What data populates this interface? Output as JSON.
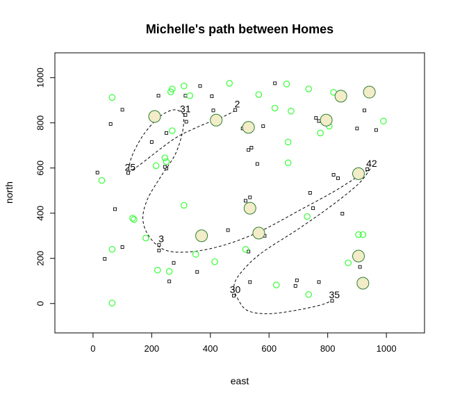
{
  "chart_data": {
    "type": "scatter",
    "title": "Michelle's path between Homes",
    "xlabel": "east",
    "ylabel": "north",
    "xlim": [
      -130,
      1130
    ],
    "ylim": [
      -130,
      1110
    ],
    "xticks": [
      0,
      200,
      400,
      600,
      800,
      1000
    ],
    "yticks": [
      0,
      200,
      400,
      600,
      800,
      1000
    ],
    "grid": false,
    "colors": {
      "green_circle": "#33ff33",
      "home_fill": "#f2ecc8",
      "home_stroke": "#2e7d32",
      "square": "#000000",
      "path": "#000000"
    },
    "squares": [
      [
        365,
        963
      ],
      [
        315,
        920
      ],
      [
        405,
        918
      ],
      [
        223,
        920
      ],
      [
        620,
        975
      ],
      [
        485,
        857
      ],
      [
        410,
        855
      ],
      [
        315,
        835
      ],
      [
        760,
        822
      ],
      [
        770,
        808
      ],
      [
        925,
        855
      ],
      [
        965,
        768
      ],
      [
        900,
        775
      ],
      [
        580,
        785
      ],
      [
        510,
        775
      ],
      [
        60,
        795
      ],
      [
        100,
        858
      ],
      [
        200,
        715
      ],
      [
        250,
        755
      ],
      [
        530,
        680
      ],
      [
        540,
        690
      ],
      [
        560,
        618
      ],
      [
        250,
        598
      ],
      [
        245,
        605
      ],
      [
        15,
        580
      ],
      [
        120,
        578
      ],
      [
        820,
        570
      ],
      [
        835,
        555
      ],
      [
        935,
        595
      ],
      [
        740,
        490
      ],
      [
        750,
        422
      ],
      [
        850,
        398
      ],
      [
        535,
        470
      ],
      [
        520,
        455
      ],
      [
        75,
        418
      ],
      [
        460,
        325
      ],
      [
        585,
        300
      ],
      [
        225,
        260
      ],
      [
        225,
        235
      ],
      [
        530,
        230
      ],
      [
        100,
        250
      ],
      [
        40,
        198
      ],
      [
        275,
        180
      ],
      [
        355,
        140
      ],
      [
        260,
        98
      ],
      [
        910,
        162
      ],
      [
        695,
        103
      ],
      [
        690,
        78
      ],
      [
        770,
        95
      ],
      [
        535,
        95
      ],
      [
        480,
        35
      ],
      [
        815,
        12
      ],
      [
        318,
        805
      ]
    ],
    "circles": [
      [
        65,
        912
      ],
      [
        310,
        963
      ],
      [
        270,
        950
      ],
      [
        265,
        937
      ],
      [
        465,
        975
      ],
      [
        660,
        972
      ],
      [
        735,
        950
      ],
      [
        820,
        935
      ],
      [
        565,
        925
      ],
      [
        330,
        920
      ],
      [
        620,
        865
      ],
      [
        675,
        852
      ],
      [
        805,
        785
      ],
      [
        990,
        808
      ],
      [
        775,
        755
      ],
      [
        270,
        765
      ],
      [
        665,
        715
      ],
      [
        245,
        645
      ],
      [
        215,
        610
      ],
      [
        250,
        628
      ],
      [
        665,
        623
      ],
      [
        30,
        545
      ],
      [
        310,
        435
      ],
      [
        135,
        378
      ],
      [
        140,
        372
      ],
      [
        730,
        385
      ],
      [
        905,
        305
      ],
      [
        920,
        305
      ],
      [
        180,
        290
      ],
      [
        520,
        240
      ],
      [
        65,
        240
      ],
      [
        350,
        218
      ],
      [
        415,
        185
      ],
      [
        220,
        148
      ],
      [
        260,
        142
      ],
      [
        870,
        180
      ],
      [
        625,
        82
      ],
      [
        735,
        40
      ],
      [
        65,
        2
      ]
    ],
    "homes": [
      [
        210,
        828
      ],
      [
        420,
        812
      ],
      [
        530,
        780
      ],
      [
        795,
        812
      ],
      [
        845,
        918
      ],
      [
        942,
        936
      ],
      [
        370,
        300
      ],
      [
        535,
        422
      ],
      [
        565,
        312
      ],
      [
        905,
        575
      ],
      [
        905,
        210
      ],
      [
        920,
        90
      ]
    ],
    "labels": [
      {
        "text": "31",
        "x": 310,
        "y": 837
      },
      {
        "text": "2",
        "x": 487,
        "y": 860
      },
      {
        "text": "25",
        "x": 122,
        "y": 580
      },
      {
        "text": "42",
        "x": 945,
        "y": 596
      },
      {
        "text": "3",
        "x": 228,
        "y": 262
      },
      {
        "text": "30",
        "x": 480,
        "y": 38
      },
      {
        "text": "35",
        "x": 818,
        "y": 15
      }
    ],
    "paths": [
      [
        [
          120,
          580
        ],
        [
          155,
          610
        ],
        [
          200,
          655
        ],
        [
          245,
          700
        ],
        [
          290,
          740
        ],
        [
          340,
          772
        ],
        [
          390,
          800
        ],
        [
          440,
          825
        ],
        [
          487,
          855
        ]
      ],
      [
        [
          310,
          838
        ],
        [
          280,
          858
        ],
        [
          235,
          835
        ],
        [
          185,
          770
        ],
        [
          150,
          700
        ],
        [
          128,
          635
        ],
        [
          120,
          580
        ]
      ],
      [
        [
          310,
          838
        ],
        [
          305,
          760
        ],
        [
          280,
          660
        ],
        [
          230,
          560
        ],
        [
          185,
          460
        ],
        [
          170,
          370
        ],
        [
          195,
          290
        ],
        [
          250,
          235
        ],
        [
          340,
          230
        ],
        [
          450,
          260
        ],
        [
          570,
          320
        ],
        [
          700,
          410
        ],
        [
          820,
          495
        ],
        [
          900,
          560
        ],
        [
          945,
          596
        ]
      ],
      [
        [
          945,
          596
        ],
        [
          905,
          530
        ],
        [
          820,
          440
        ],
        [
          700,
          330
        ],
        [
          570,
          220
        ],
        [
          500,
          130
        ],
        [
          480,
          75
        ],
        [
          490,
          30
        ],
        [
          525,
          -30
        ],
        [
          600,
          -45
        ],
        [
          700,
          -28
        ],
        [
          780,
          -5
        ],
        [
          818,
          15
        ]
      ]
    ]
  }
}
